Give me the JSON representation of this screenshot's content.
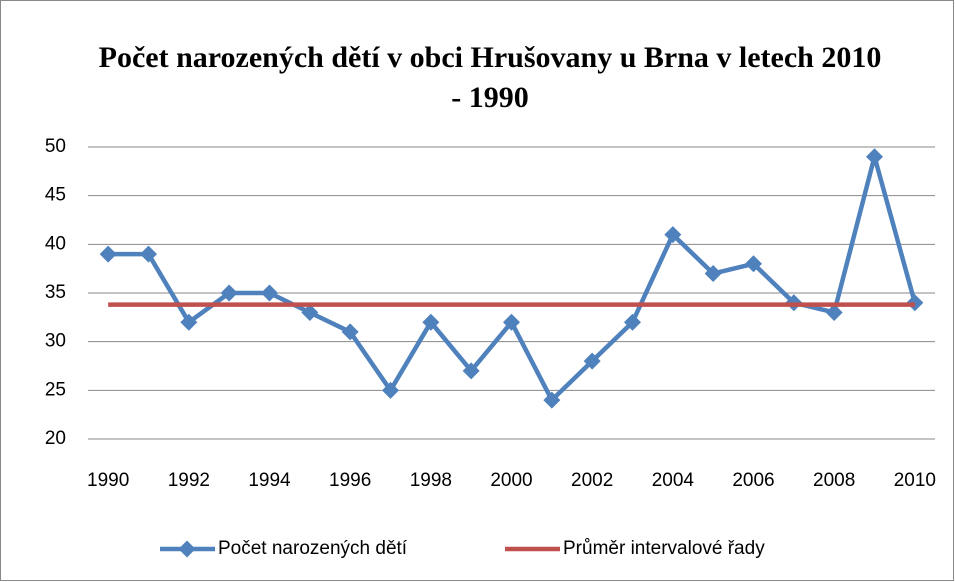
{
  "chart_data": {
    "type": "line",
    "title": "Počet narozených dětí v obci Hrušovany u Brna v letech 2010 - 1990",
    "categories": [
      "1990",
      null,
      "1992",
      null,
      "1994",
      null,
      "1996",
      null,
      "1998",
      null,
      "2000",
      null,
      "2002",
      null,
      "2004",
      null,
      "2006",
      null,
      "2008",
      null,
      "2010"
    ],
    "series": [
      {
        "name": "Počet narozených dětí",
        "color": "#4f81bd",
        "marker": "diamond",
        "values": [
          39,
          39,
          32,
          35,
          35,
          33,
          31,
          25,
          32,
          27,
          32,
          24,
          28,
          32,
          41,
          37,
          38,
          34,
          33,
          49,
          34
        ]
      },
      {
        "name": "Průměr intervalové řady",
        "color": "#c0504d",
        "values": [
          33.8,
          33.8,
          33.8,
          33.8,
          33.8,
          33.8,
          33.8,
          33.8,
          33.8,
          33.8,
          33.8,
          33.8,
          33.8,
          33.8,
          33.8,
          33.8,
          33.8,
          33.8,
          33.8,
          33.8,
          33.8
        ]
      }
    ],
    "ylim": [
      20,
      50
    ],
    "yticks": [
      20,
      25,
      30,
      35,
      40,
      45,
      50
    ],
    "grid": true,
    "legend": "bottom"
  }
}
